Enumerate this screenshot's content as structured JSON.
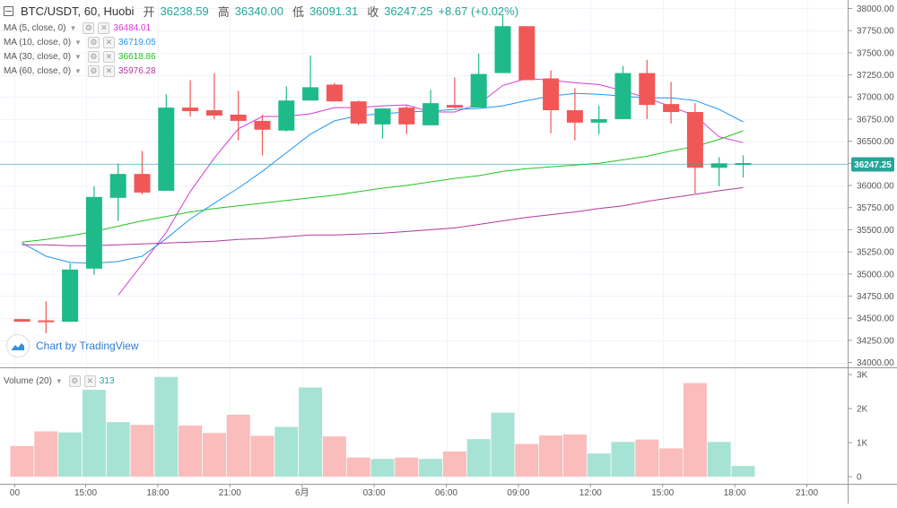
{
  "header": {
    "symbol": "BTC/USDT, 60, Huobi",
    "open_label": "开",
    "open": "36238.59",
    "high_label": "高",
    "high": "36340.00",
    "low_label": "低",
    "low": "36091.31",
    "close_label": "收",
    "close": "36247.25",
    "change": "+8.67 (+0.02%)"
  },
  "indicators": [
    {
      "label": "MA (5, close, 0)",
      "value": "36484.01",
      "color": "#d63ad6"
    },
    {
      "label": "MA (10, close, 0)",
      "value": "36719.05",
      "color": "#2196f3"
    },
    {
      "label": "MA (30, close, 0)",
      "value": "36618.86",
      "color": "#21c421"
    },
    {
      "label": "MA (60, close, 0)",
      "value": "35976.28",
      "color": "#b03a9c"
    }
  ],
  "volume_indicator": {
    "label": "Volume (20)",
    "value": "313",
    "color": "#26a69a"
  },
  "watermark": "Chart by TradingView",
  "price_badge": "36247.25",
  "colors": {
    "up": "#26a69a",
    "up_body": "#1fba8a",
    "down": "#f25757",
    "vol_up": "#a7e3d5",
    "vol_down": "#fbbcbc"
  },
  "chart_data": {
    "type": "candlestick",
    "title": "BTC/USDT, 60, Huobi",
    "price_axis": {
      "ylim": [
        33975,
        38025
      ],
      "ticks": [
        34000,
        34250,
        34500,
        34750,
        35000,
        35250,
        35500,
        35750,
        36000,
        36250,
        36500,
        36750,
        37000,
        37250,
        37500,
        37750,
        38000
      ],
      "tick_labels": [
        "34000.00",
        "34250.00",
        "34500.00",
        "34750.00",
        "35000.00",
        "35250.00",
        "35500.00",
        "35750.00",
        "36000.00",
        "36250.00",
        "36500.00",
        "36750.00",
        "37000.00",
        "37250.00",
        "37500.00",
        "37750.00",
        "38000.00"
      ]
    },
    "volume_axis": {
      "ylim": [
        0,
        3000
      ],
      "ticks": [
        0,
        1000,
        2000,
        3000
      ],
      "tick_labels": [
        "0",
        "1K",
        "2K",
        "3K"
      ]
    },
    "time_axis": {
      "labels": [
        "00",
        "15:00",
        "18:00",
        "21:00",
        "6月",
        "03:00",
        "06:00",
        "09:00",
        "12:00",
        "15:00",
        "18:00",
        "21:00"
      ],
      "label_slots": [
        -0.3,
        2.65,
        5.65,
        8.65,
        11.65,
        14.65,
        17.65,
        20.65,
        23.65,
        26.65,
        29.65,
        32.65
      ]
    },
    "candles": [
      {
        "o": 34490,
        "h": 34490,
        "l": 34460,
        "c": 34460
      },
      {
        "o": 34470,
        "h": 34690,
        "l": 34330,
        "c": 34460
      },
      {
        "o": 34460,
        "h": 35120,
        "l": 34460,
        "c": 35050
      },
      {
        "o": 35060,
        "h": 35990,
        "l": 34990,
        "c": 35870
      },
      {
        "o": 35860,
        "h": 36250,
        "l": 35600,
        "c": 36130
      },
      {
        "o": 36130,
        "h": 36390,
        "l": 35900,
        "c": 35920
      },
      {
        "o": 35940,
        "h": 37030,
        "l": 35940,
        "c": 36880
      },
      {
        "o": 36880,
        "h": 37190,
        "l": 36780,
        "c": 36840
      },
      {
        "o": 36850,
        "h": 37270,
        "l": 36750,
        "c": 36790
      },
      {
        "o": 36800,
        "h": 37070,
        "l": 36510,
        "c": 36730
      },
      {
        "o": 36730,
        "h": 36800,
        "l": 36340,
        "c": 36630
      },
      {
        "o": 36620,
        "h": 37120,
        "l": 36610,
        "c": 36960
      },
      {
        "o": 36960,
        "h": 37470,
        "l": 36960,
        "c": 37110
      },
      {
        "o": 37140,
        "h": 37160,
        "l": 36950,
        "c": 36950
      },
      {
        "o": 36950,
        "h": 36960,
        "l": 36680,
        "c": 36700
      },
      {
        "o": 36690,
        "h": 36870,
        "l": 36530,
        "c": 36870
      },
      {
        "o": 36880,
        "h": 36900,
        "l": 36580,
        "c": 36690
      },
      {
        "o": 36680,
        "h": 37080,
        "l": 36680,
        "c": 36930
      },
      {
        "o": 36910,
        "h": 37220,
        "l": 36870,
        "c": 36880
      },
      {
        "o": 36880,
        "h": 37490,
        "l": 36880,
        "c": 37260
      },
      {
        "o": 37270,
        "h": 37920,
        "l": 37270,
        "c": 37800
      },
      {
        "o": 37800,
        "h": 37800,
        "l": 37190,
        "c": 37190
      },
      {
        "o": 37210,
        "h": 37300,
        "l": 36590,
        "c": 36850
      },
      {
        "o": 36850,
        "h": 37100,
        "l": 36510,
        "c": 36710
      },
      {
        "o": 36710,
        "h": 36900,
        "l": 36580,
        "c": 36750
      },
      {
        "o": 36750,
        "h": 37350,
        "l": 36750,
        "c": 37270
      },
      {
        "o": 37270,
        "h": 37420,
        "l": 36750,
        "c": 36910
      },
      {
        "o": 36920,
        "h": 37170,
        "l": 36700,
        "c": 36830
      },
      {
        "o": 36830,
        "h": 36930,
        "l": 35910,
        "c": 36200
      },
      {
        "o": 36200,
        "h": 36320,
        "l": 35990,
        "c": 36250
      },
      {
        "o": 36239,
        "h": 36340,
        "l": 36091,
        "c": 36247
      }
    ],
    "volumes": [
      900,
      1330,
      1300,
      2550,
      1600,
      1520,
      2930,
      1500,
      1280,
      1820,
      1200,
      1460,
      2620,
      1180,
      560,
      520,
      560,
      520,
      740,
      1100,
      1880,
      960,
      1210,
      1240,
      680,
      1020,
      1090,
      830,
      2750,
      1020,
      313
    ],
    "ma_series": [
      {
        "name": "MA (5, close, 0)",
        "color": "#d63ad6",
        "values": [
          null,
          null,
          null,
          null,
          34760,
          35110,
          35470,
          35930,
          36310,
          36640,
          36780,
          36780,
          36810,
          36880,
          36880,
          36900,
          36910,
          36830,
          36830,
          36920,
          37130,
          37210,
          37190,
          37160,
          37140,
          37070,
          36990,
          36890,
          36790,
          36550,
          36484
        ]
      },
      {
        "name": "MA (10, close, 0)",
        "color": "#2196f3",
        "values": [
          35350,
          35200,
          35130,
          35120,
          35140,
          35200,
          35400,
          35620,
          35800,
          35970,
          36160,
          36370,
          36580,
          36730,
          36790,
          36810,
          36830,
          36840,
          36860,
          36870,
          36900,
          36960,
          37010,
          37040,
          37030,
          37010,
          36990,
          36990,
          36960,
          36860,
          36719
        ]
      },
      {
        "name": "MA (30, close, 0)",
        "color": "#21c421",
        "values": [
          35360,
          35390,
          35430,
          35480,
          35540,
          35600,
          35650,
          35700,
          35740,
          35770,
          35800,
          35830,
          35860,
          35890,
          35930,
          35970,
          36000,
          36040,
          36080,
          36110,
          36160,
          36190,
          36210,
          36230,
          36250,
          36290,
          36330,
          36390,
          36440,
          36520,
          36618
        ]
      },
      {
        "name": "MA (60, close, 0)",
        "color": "#b03a9c",
        "values": [
          35330,
          35330,
          35320,
          35320,
          35330,
          35340,
          35350,
          35360,
          35370,
          35390,
          35400,
          35420,
          35440,
          35440,
          35450,
          35460,
          35480,
          35500,
          35520,
          35560,
          35600,
          35640,
          35670,
          35700,
          35740,
          35770,
          35820,
          35860,
          35900,
          35940,
          35976
        ]
      }
    ]
  }
}
